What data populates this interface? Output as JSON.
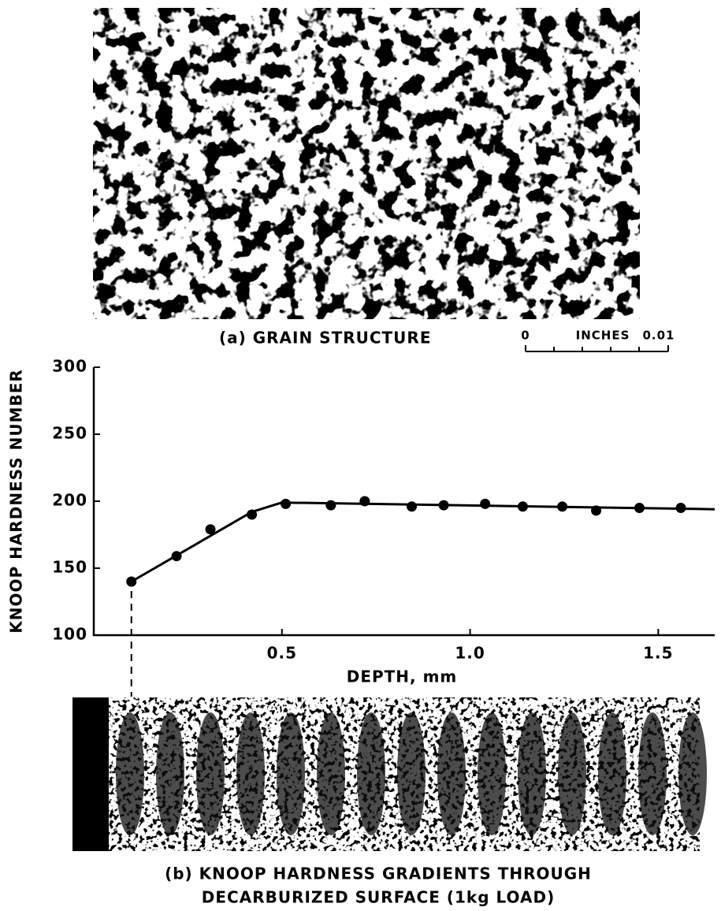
{
  "figure": {
    "caption_a": "(a) GRAIN STRUCTURE",
    "scale_bar": {
      "start": "0",
      "unit": "INCHES",
      "end": "0.01"
    },
    "caption_b": [
      "(b) KNOOP HARDNESS GRADIENTS THROUGH",
      "DECARBURIZED SURFACE (1kg LOAD)"
    ]
  },
  "chart_data": {
    "type": "scatter",
    "y_label": "KNOOP HARDNESS NUMBER",
    "x_label": "DEPTH, mm",
    "xlim": [
      0,
      1.65
    ],
    "ylim": [
      100,
      300
    ],
    "xticks": [
      0.5,
      {
        "value": 1,
        "label": "1.0"
      },
      1.5
    ],
    "yticks": [
      100,
      150,
      200,
      250,
      300
    ],
    "series": [
      {
        "color": "#000000",
        "x": [
          0.1,
          0.22,
          0.31,
          0.42,
          0.51,
          0.63,
          0.72,
          0.845,
          0.93,
          1.04,
          1.14,
          1.245,
          1.335,
          1.45,
          1.56
        ],
        "values": [
          140,
          159,
          179,
          190,
          198,
          197,
          200,
          196,
          197,
          198,
          196,
          196,
          193,
          195,
          195
        ]
      },
      {
        "color": "#000000",
        "x": [
          0.1,
          0.42,
          0.5,
          1.65
        ],
        "values": [
          140,
          192,
          199,
          194
        ]
      }
    ]
  }
}
